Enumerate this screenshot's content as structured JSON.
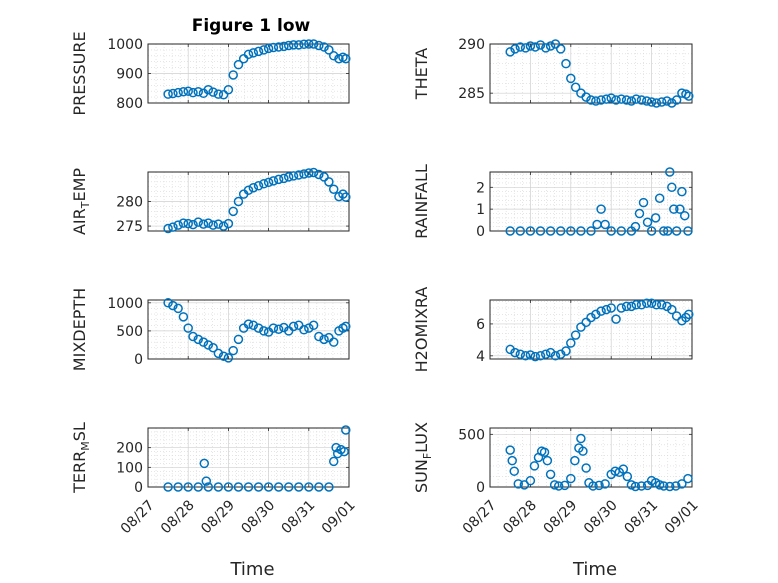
{
  "figure": {
    "title": "Figure 1 low",
    "marker_color": "#0072BD",
    "xlabel": "Time"
  },
  "chart_data": [
    {
      "type": "scatter",
      "title": "Figure 1 low",
      "xlabel": "",
      "ylabel": "PRESSURE",
      "ylabel_sub": "",
      "ylim": [
        800,
        1000
      ],
      "yticks": [
        800,
        900,
        1000
      ],
      "ytick_labels": [
        "800",
        "900",
        "1000"
      ],
      "xlim": [
        0,
        5
      ],
      "xticks": [
        0,
        1,
        2,
        3,
        4,
        5
      ],
      "xtick_labels": [],
      "grid": true,
      "minor_grid": true,
      "series": [
        {
          "x": [
            0.5,
            0.62,
            0.75,
            0.88,
            1.0,
            1.12,
            1.25,
            1.38,
            1.5,
            1.62,
            1.75,
            1.88,
            2.0,
            2.12,
            2.25,
            2.38,
            2.5,
            2.62,
            2.75,
            2.88,
            3.0,
            3.12,
            3.25,
            3.38,
            3.5,
            3.62,
            3.75,
            3.88,
            4.0,
            4.12,
            4.25,
            4.38,
            4.5,
            4.62,
            4.75,
            4.85,
            4.92
          ],
          "y": [
            830,
            832,
            835,
            838,
            840,
            835,
            838,
            833,
            845,
            837,
            830,
            828,
            845,
            895,
            930,
            950,
            965,
            970,
            975,
            980,
            985,
            988,
            990,
            992,
            995,
            997,
            997,
            999,
            1000,
            1000,
            995,
            990,
            980,
            960,
            950,
            955,
            950
          ]
        }
      ]
    },
    {
      "type": "scatter",
      "title": "",
      "xlabel": "",
      "ylabel": "THETA",
      "ylabel_sub": "",
      "ylim": [
        284,
        290
      ],
      "yticks": [
        285,
        290
      ],
      "ytick_labels": [
        "285",
        "290"
      ],
      "xlim": [
        0,
        5
      ],
      "xticks": [
        0,
        1,
        2,
        3,
        4,
        5
      ],
      "xtick_labels": [],
      "grid": true,
      "minor_grid": true,
      "series": [
        {
          "x": [
            0.5,
            0.62,
            0.75,
            0.88,
            1.0,
            1.12,
            1.25,
            1.38,
            1.5,
            1.62,
            1.75,
            1.88,
            2.0,
            2.12,
            2.25,
            2.38,
            2.5,
            2.62,
            2.75,
            2.88,
            3.0,
            3.12,
            3.25,
            3.38,
            3.5,
            3.62,
            3.75,
            3.88,
            4.0,
            4.12,
            4.25,
            4.38,
            4.5,
            4.62,
            4.75,
            4.85,
            4.92
          ],
          "y": [
            289.2,
            289.5,
            289.7,
            289.6,
            289.8,
            289.7,
            289.9,
            289.6,
            289.8,
            290.0,
            289.5,
            288.0,
            286.5,
            285.6,
            285.0,
            284.6,
            284.3,
            284.2,
            284.3,
            284.4,
            284.5,
            284.3,
            284.4,
            284.3,
            284.2,
            284.4,
            284.3,
            284.2,
            284.1,
            284.0,
            284.1,
            284.2,
            284.0,
            284.3,
            285.0,
            284.9,
            284.7
          ]
        }
      ]
    },
    {
      "type": "scatter",
      "title": "",
      "xlabel": "",
      "ylabel": "AIR",
      "ylabel_sub": "T",
      "ylabel_suffix": "EMP",
      "ylim": [
        274,
        286
      ],
      "yticks": [
        275,
        280
      ],
      "ytick_labels": [
        "275",
        "280"
      ],
      "xlim": [
        0,
        5
      ],
      "xticks": [
        0,
        1,
        2,
        3,
        4,
        5
      ],
      "xtick_labels": [],
      "grid": true,
      "minor_grid": true,
      "series": [
        {
          "x": [
            0.5,
            0.62,
            0.75,
            0.88,
            1.0,
            1.12,
            1.25,
            1.38,
            1.5,
            1.62,
            1.75,
            1.88,
            2.0,
            2.12,
            2.25,
            2.38,
            2.5,
            2.62,
            2.75,
            2.88,
            3.0,
            3.12,
            3.25,
            3.38,
            3.5,
            3.62,
            3.75,
            3.88,
            4.0,
            4.12,
            4.25,
            4.38,
            4.5,
            4.62,
            4.75,
            4.85,
            4.92
          ],
          "y": [
            274.5,
            274.8,
            275.2,
            275.6,
            275.5,
            275.3,
            275.8,
            275.4,
            275.6,
            275.2,
            275.4,
            275.0,
            275.5,
            278.0,
            280.0,
            281.5,
            282.3,
            282.8,
            283.2,
            283.6,
            283.9,
            284.2,
            284.5,
            284.7,
            285.0,
            285.2,
            285.4,
            285.6,
            285.8,
            285.9,
            285.5,
            285.0,
            284.0,
            282.5,
            281.0,
            281.5,
            280.9
          ]
        }
      ]
    },
    {
      "type": "scatter",
      "title": "",
      "xlabel": "",
      "ylabel": "RAINFALL",
      "ylabel_sub": "",
      "ylim": [
        0,
        2.7
      ],
      "yticks": [
        0,
        1,
        2
      ],
      "ytick_labels": [
        "0",
        "1",
        "2"
      ],
      "xlim": [
        0,
        5
      ],
      "xticks": [
        0,
        1,
        2,
        3,
        4,
        5
      ],
      "xtick_labels": [],
      "grid": true,
      "minor_grid": true,
      "series": [
        {
          "x": [
            0.5,
            0.75,
            1.0,
            1.25,
            1.5,
            1.75,
            2.0,
            2.25,
            2.5,
            2.65,
            2.75,
            2.85,
            3.0,
            3.25,
            3.5,
            3.6,
            3.7,
            3.8,
            3.9,
            4.0,
            4.1,
            4.2,
            4.3,
            4.4,
            4.45,
            4.5,
            4.55,
            4.62,
            4.7,
            4.75,
            4.82,
            4.9
          ],
          "y": [
            0,
            0,
            0,
            0,
            0,
            0,
            0,
            0,
            0,
            0.3,
            1.0,
            0.3,
            0,
            0,
            0,
            0.2,
            0.8,
            1.3,
            0.4,
            0,
            0.6,
            1.5,
            0,
            0,
            2.7,
            2.0,
            1.0,
            0,
            1.0,
            1.8,
            0.7,
            0
          ]
        }
      ]
    },
    {
      "type": "scatter",
      "title": "",
      "xlabel": "",
      "ylabel": "MIXDEPTH",
      "ylabel_sub": "",
      "ylim": [
        0,
        1050
      ],
      "yticks": [
        0,
        500,
        1000
      ],
      "ytick_labels": [
        "0",
        "500",
        "1000"
      ],
      "xlim": [
        0,
        5
      ],
      "xticks": [
        0,
        1,
        2,
        3,
        4,
        5
      ],
      "xtick_labels": [],
      "grid": true,
      "minor_grid": true,
      "series": [
        {
          "x": [
            0.5,
            0.62,
            0.75,
            0.88,
            1.0,
            1.12,
            1.25,
            1.38,
            1.5,
            1.62,
            1.75,
            1.88,
            2.0,
            2.12,
            2.25,
            2.38,
            2.5,
            2.62,
            2.75,
            2.88,
            3.0,
            3.12,
            3.25,
            3.38,
            3.5,
            3.62,
            3.75,
            3.88,
            4.0,
            4.12,
            4.25,
            4.38,
            4.5,
            4.62,
            4.75,
            4.85,
            4.92
          ],
          "y": [
            1000,
            950,
            900,
            750,
            550,
            400,
            350,
            300,
            250,
            200,
            100,
            50,
            20,
            150,
            350,
            550,
            620,
            600,
            550,
            500,
            480,
            550,
            530,
            560,
            500,
            580,
            600,
            520,
            550,
            600,
            400,
            350,
            380,
            300,
            500,
            550,
            580
          ]
        }
      ]
    },
    {
      "type": "scatter",
      "title": "",
      "xlabel": "",
      "ylabel": "H2OMIXRA",
      "ylabel_sub": "",
      "ylim": [
        3.8,
        7.5
      ],
      "yticks": [
        4,
        6
      ],
      "ytick_labels": [
        "4",
        "6"
      ],
      "xlim": [
        0,
        5
      ],
      "xticks": [
        0,
        1,
        2,
        3,
        4,
        5
      ],
      "xtick_labels": [],
      "grid": true,
      "minor_grid": true,
      "series": [
        {
          "x": [
            0.5,
            0.62,
            0.75,
            0.88,
            1.0,
            1.12,
            1.25,
            1.38,
            1.5,
            1.62,
            1.75,
            1.88,
            2.0,
            2.12,
            2.25,
            2.38,
            2.5,
            2.62,
            2.75,
            2.88,
            3.0,
            3.12,
            3.25,
            3.38,
            3.5,
            3.62,
            3.75,
            3.88,
            4.0,
            4.12,
            4.25,
            4.38,
            4.5,
            4.62,
            4.75,
            4.85,
            4.92
          ],
          "y": [
            4.4,
            4.2,
            4.1,
            4.0,
            4.05,
            3.95,
            4.0,
            4.1,
            4.2,
            4.0,
            4.1,
            4.3,
            4.8,
            5.3,
            5.8,
            6.1,
            6.4,
            6.6,
            6.8,
            6.9,
            7.0,
            6.3,
            7.0,
            7.1,
            7.1,
            7.2,
            7.2,
            7.3,
            7.3,
            7.2,
            7.2,
            7.1,
            6.9,
            6.5,
            6.2,
            6.4,
            6.6
          ]
        }
      ]
    },
    {
      "type": "scatter",
      "title": "",
      "xlabel": "Time",
      "ylabel": "TERR",
      "ylabel_sub": "M",
      "ylabel_suffix": "SL",
      "ylim": [
        0,
        300
      ],
      "yticks": [
        0,
        100,
        200
      ],
      "ytick_labels": [
        "0",
        "100",
        "200"
      ],
      "xlim": [
        0,
        5
      ],
      "xticks": [
        0,
        1,
        2,
        3,
        4,
        5
      ],
      "xtick_labels": [
        "08/27",
        "08/28",
        "08/29",
        "08/30",
        "08/31",
        "09/01"
      ],
      "grid": true,
      "minor_grid": true,
      "series": [
        {
          "x": [
            0.5,
            0.75,
            1.0,
            1.25,
            1.4,
            1.45,
            1.5,
            1.75,
            2.0,
            2.25,
            2.5,
            2.75,
            3.0,
            3.25,
            3.5,
            3.75,
            4.0,
            4.25,
            4.5,
            4.62,
            4.68,
            4.72,
            4.8,
            4.88,
            4.92
          ],
          "y": [
            0,
            0,
            0,
            0,
            120,
            30,
            0,
            0,
            0,
            0,
            0,
            0,
            0,
            0,
            0,
            0,
            0,
            0,
            0,
            130,
            200,
            170,
            190,
            180,
            290
          ]
        }
      ]
    },
    {
      "type": "scatter",
      "title": "",
      "xlabel": "Time",
      "ylabel": "SUN",
      "ylabel_sub": "F",
      "ylabel_suffix": "LUX",
      "ylim": [
        0,
        560
      ],
      "yticks": [
        0,
        500
      ],
      "ytick_labels": [
        "0",
        "500"
      ],
      "xlim": [
        0,
        5
      ],
      "xticks": [
        0,
        1,
        2,
        3,
        4,
        5
      ],
      "xtick_labels": [
        "08/27",
        "08/28",
        "08/29",
        "08/30",
        "08/31",
        "09/01"
      ],
      "grid": true,
      "minor_grid": true,
      "series": [
        {
          "x": [
            0.5,
            0.55,
            0.6,
            0.7,
            0.85,
            1.0,
            1.1,
            1.2,
            1.28,
            1.35,
            1.42,
            1.5,
            1.6,
            1.7,
            1.85,
            2.0,
            2.1,
            2.2,
            2.25,
            2.3,
            2.38,
            2.45,
            2.55,
            2.7,
            2.85,
            3.0,
            3.1,
            3.2,
            3.3,
            3.4,
            3.5,
            3.6,
            3.75,
            3.9,
            4.0,
            4.1,
            4.2,
            4.3,
            4.45,
            4.6,
            4.75,
            4.9
          ],
          "y": [
            350,
            250,
            150,
            30,
            20,
            60,
            200,
            280,
            340,
            330,
            250,
            120,
            20,
            10,
            15,
            80,
            250,
            370,
            460,
            340,
            180,
            40,
            10,
            15,
            30,
            120,
            150,
            140,
            170,
            100,
            20,
            5,
            10,
            15,
            60,
            40,
            20,
            10,
            5,
            10,
            30,
            80
          ]
        }
      ]
    }
  ]
}
